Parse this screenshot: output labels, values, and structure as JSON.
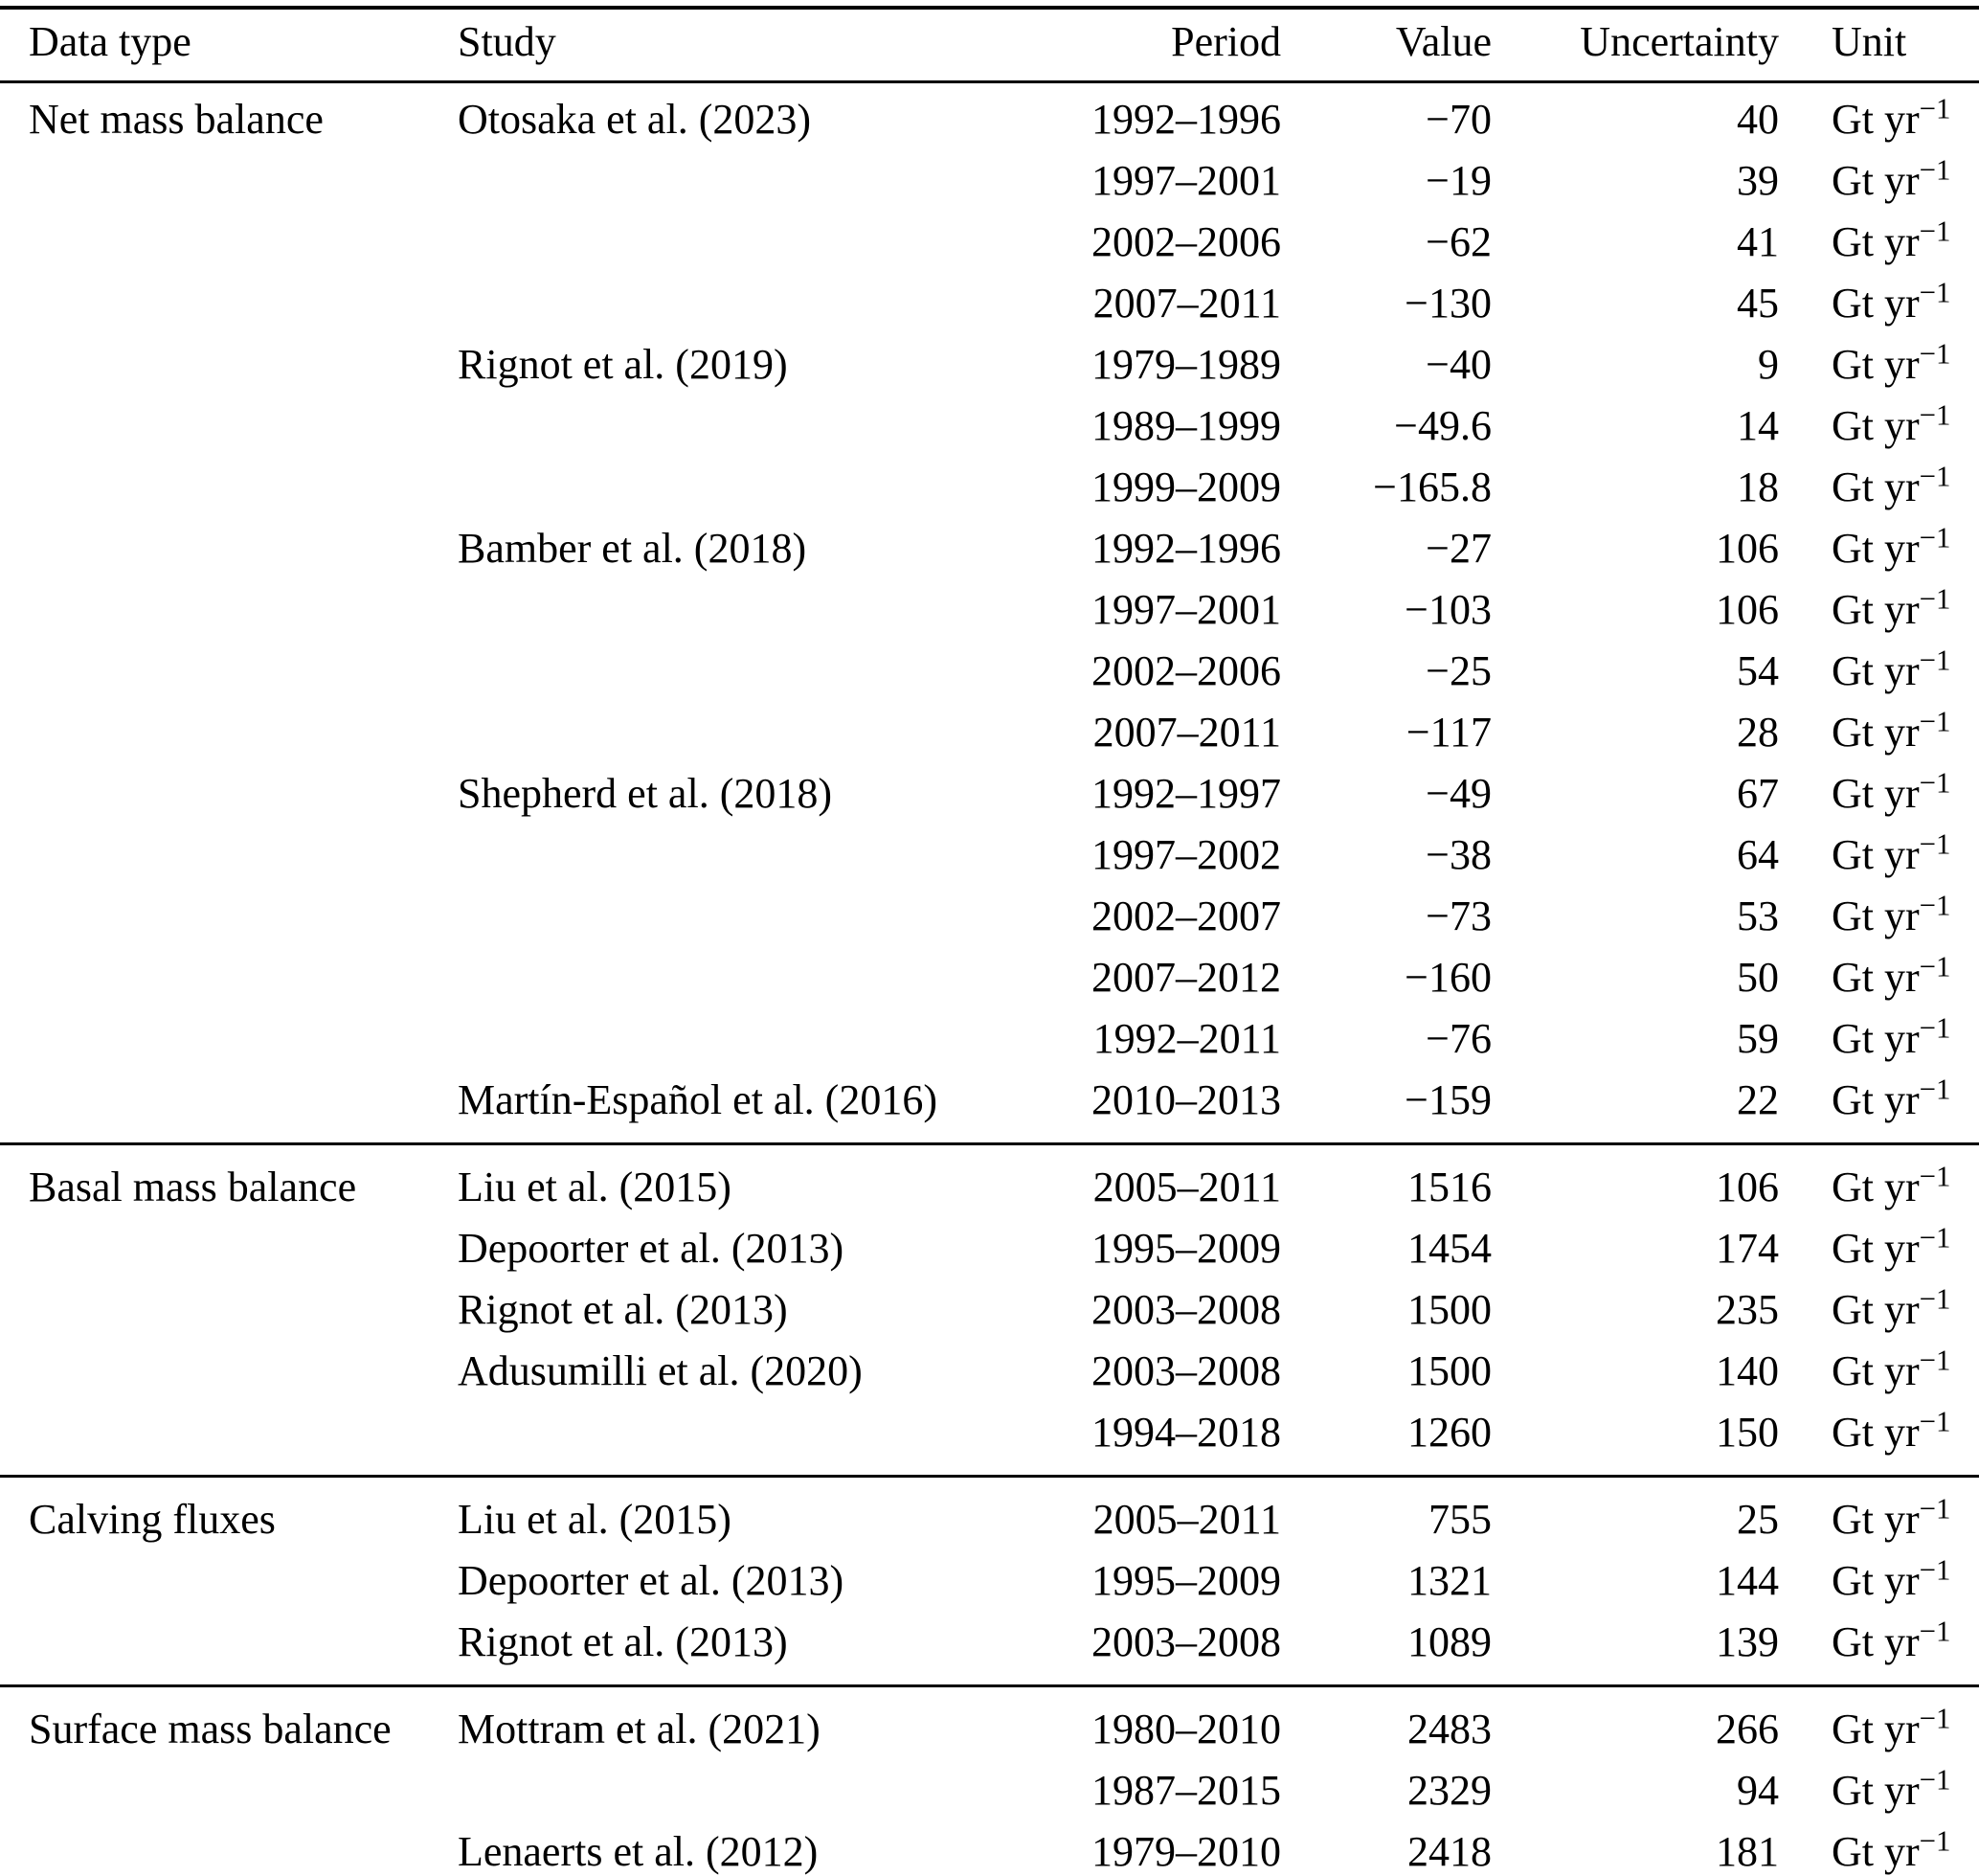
{
  "table": {
    "columns": [
      "Data type",
      "Study",
      "Period",
      "Value",
      "Uncertainty",
      "Unit"
    ],
    "unit": {
      "base": "Gt yr",
      "exponent": "−1"
    },
    "sections": [
      {
        "data_type": "Net mass balance",
        "rows": [
          {
            "study": "Otosaka et al. (2023)",
            "period": "1992–1996",
            "value": "−70",
            "uncertainty": "40"
          },
          {
            "study": "",
            "period": "1997–2001",
            "value": "−19",
            "uncertainty": "39"
          },
          {
            "study": "",
            "period": "2002–2006",
            "value": "−62",
            "uncertainty": "41"
          },
          {
            "study": "",
            "period": "2007–2011",
            "value": "−130",
            "uncertainty": "45"
          },
          {
            "study": "Rignot et al. (2019)",
            "period": "1979–1989",
            "value": "−40",
            "uncertainty": "9"
          },
          {
            "study": "",
            "period": "1989–1999",
            "value": "−49.6",
            "uncertainty": "14"
          },
          {
            "study": "",
            "period": "1999–2009",
            "value": "−165.8",
            "uncertainty": "18"
          },
          {
            "study": "Bamber et al. (2018)",
            "period": "1992–1996",
            "value": "−27",
            "uncertainty": "106"
          },
          {
            "study": "",
            "period": "1997–2001",
            "value": "−103",
            "uncertainty": "106"
          },
          {
            "study": "",
            "period": "2002–2006",
            "value": "−25",
            "uncertainty": "54"
          },
          {
            "study": "",
            "period": "2007–2011",
            "value": "−117",
            "uncertainty": "28"
          },
          {
            "study": "Shepherd et al. (2018)",
            "period": "1992–1997",
            "value": "−49",
            "uncertainty": "67"
          },
          {
            "study": "",
            "period": "1997–2002",
            "value": "−38",
            "uncertainty": "64"
          },
          {
            "study": "",
            "period": "2002–2007",
            "value": "−73",
            "uncertainty": "53"
          },
          {
            "study": "",
            "period": "2007–2012",
            "value": "−160",
            "uncertainty": "50"
          },
          {
            "study": "",
            "period": "1992–2011",
            "value": "−76",
            "uncertainty": "59"
          },
          {
            "study": "Martín-Español et al. (2016)",
            "period": "2010–2013",
            "value": "−159",
            "uncertainty": "22"
          }
        ]
      },
      {
        "data_type": "Basal mass balance",
        "rows": [
          {
            "study": "Liu et al. (2015)",
            "period": "2005–2011",
            "value": "1516",
            "uncertainty": "106"
          },
          {
            "study": "Depoorter et al. (2013)",
            "period": "1995–2009",
            "value": "1454",
            "uncertainty": "174"
          },
          {
            "study": "Rignot et al. (2013)",
            "period": "2003–2008",
            "value": "1500",
            "uncertainty": "235"
          },
          {
            "study": "Adusumilli et al. (2020)",
            "period": "2003–2008",
            "value": "1500",
            "uncertainty": "140"
          },
          {
            "study": "",
            "period": "1994–2018",
            "value": "1260",
            "uncertainty": "150"
          }
        ]
      },
      {
        "data_type": "Calving fluxes",
        "rows": [
          {
            "study": "Liu et al. (2015)",
            "period": "2005–2011",
            "value": "755",
            "uncertainty": "25"
          },
          {
            "study": "Depoorter et al. (2013)",
            "period": "1995–2009",
            "value": "1321",
            "uncertainty": "144"
          },
          {
            "study": "Rignot et al. (2013)",
            "period": "2003–2008",
            "value": "1089",
            "uncertainty": "139"
          }
        ]
      },
      {
        "data_type": "Surface mass balance",
        "rows": [
          {
            "study": "Mottram et al. (2021)",
            "period": "1980–2010",
            "value": "2483",
            "uncertainty": "266"
          },
          {
            "study": "",
            "period": "1987–2015",
            "value": "2329",
            "uncertainty": "94"
          },
          {
            "study": "Lenaerts et al. (2012)",
            "period": "1979–2010",
            "value": "2418",
            "uncertainty": "181"
          }
        ]
      }
    ]
  }
}
